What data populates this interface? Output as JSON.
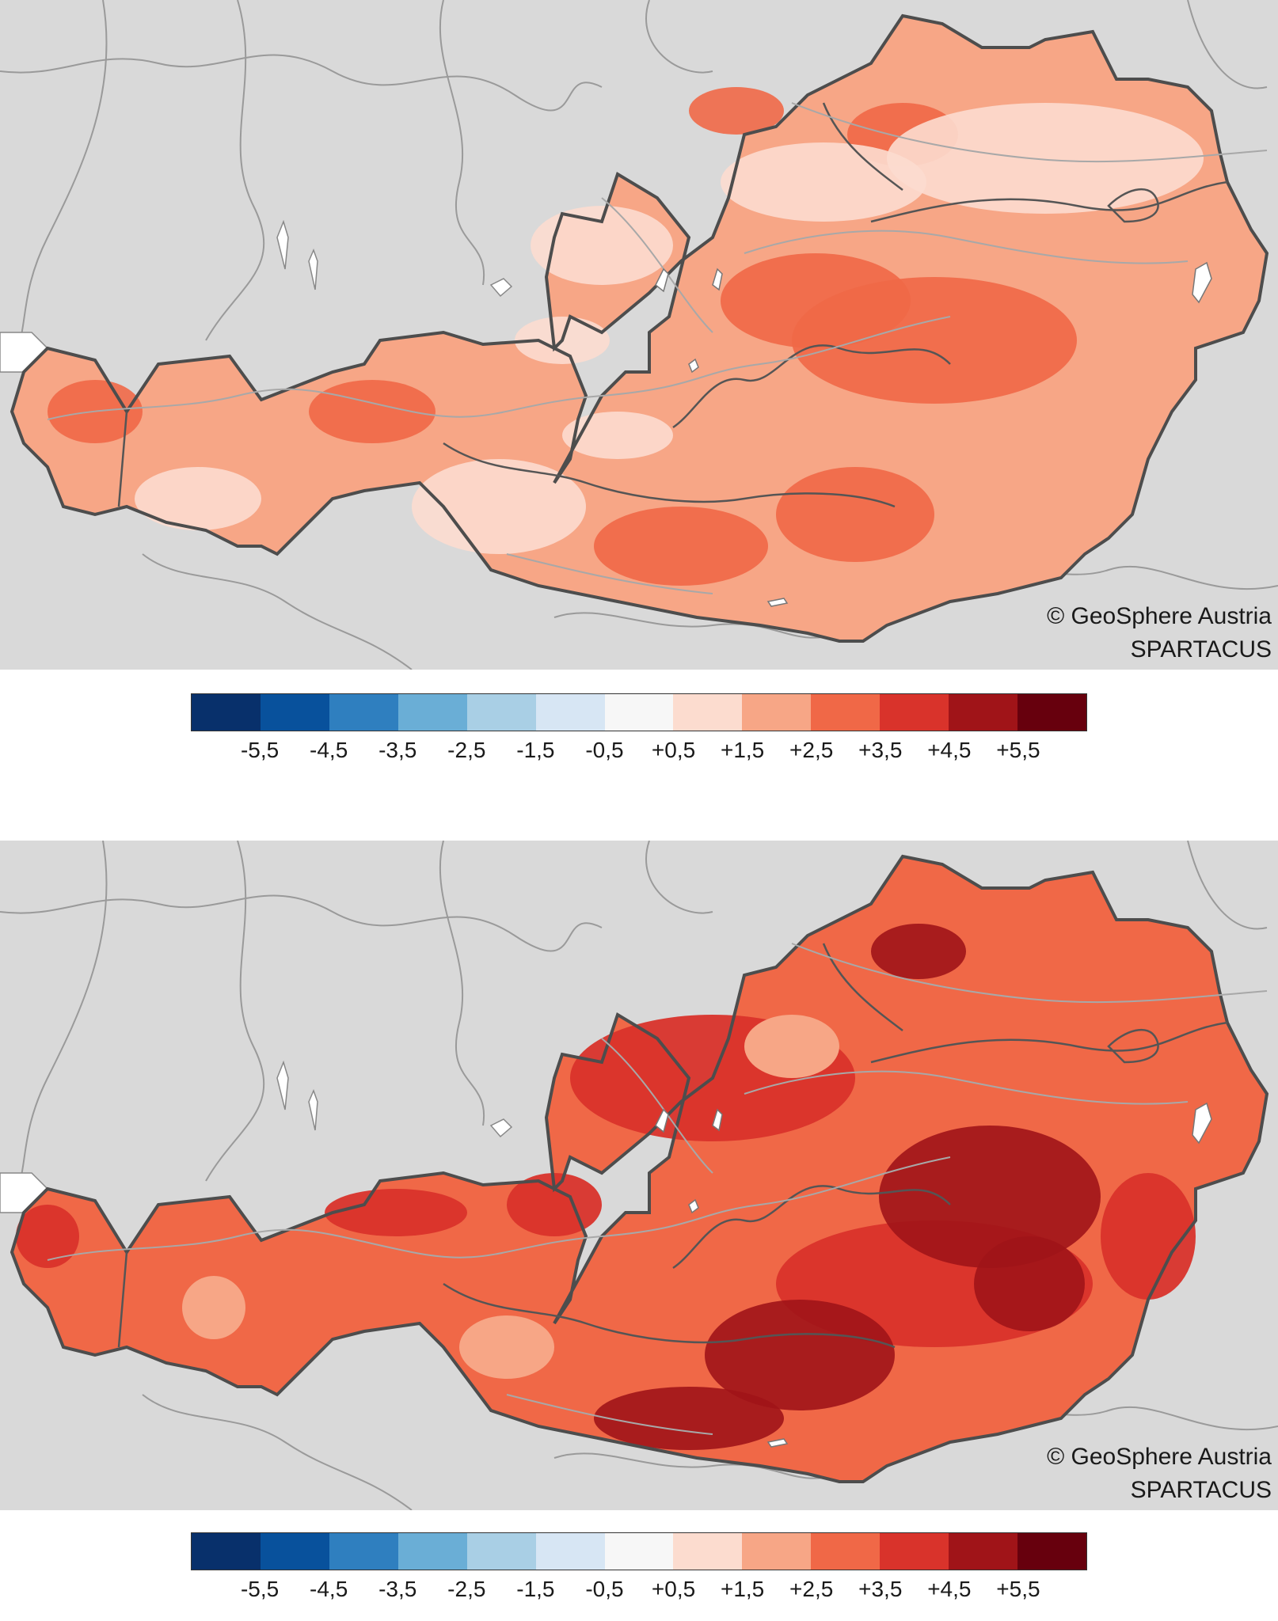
{
  "maps": [
    {
      "credit_line1": "© GeoSphere Austria",
      "credit_line2": "SPARTACUS",
      "fill_color": "#f7a686",
      "high_color": "#f06847",
      "low_color": "#fcdccf"
    },
    {
      "credit_line1": "© GeoSphere Austria",
      "credit_line2": "SPARTACUS",
      "fill_color": "#f06847",
      "high_color": "#a01418",
      "low_color": "#d9332b"
    }
  ],
  "legend": {
    "colors": [
      "#08306b",
      "#08519c",
      "#2f7fbf",
      "#6aaed6",
      "#a9cfe5",
      "#d7e6f4",
      "#f7f7f7",
      "#fcdccf",
      "#f7a686",
      "#f06847",
      "#d9332b",
      "#a01418",
      "#67000d"
    ],
    "ticks": [
      "-5,5",
      "-4,5",
      "-3,5",
      "-2,5",
      "-1,5",
      "-0,5",
      "+0,5",
      "+1,5",
      "+2,5",
      "+3,5",
      "+4,5",
      "+5,5"
    ]
  }
}
